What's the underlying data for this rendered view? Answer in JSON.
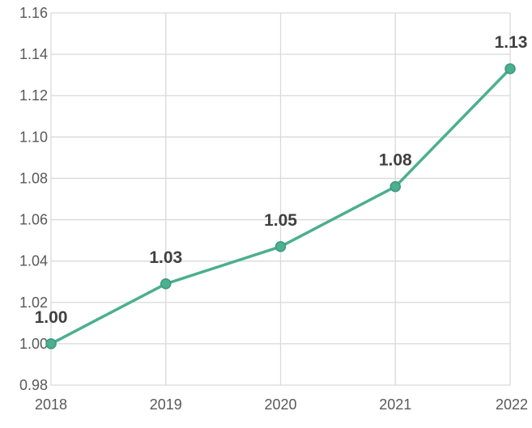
{
  "chart_data": {
    "type": "line",
    "title": "",
    "xlabel": "",
    "ylabel": "",
    "x": [
      "2018",
      "2019",
      "2020",
      "2021",
      "2022"
    ],
    "series": [
      {
        "values": [
          1.0,
          1.029,
          1.047,
          1.076,
          1.133
        ],
        "labels": [
          "1.00",
          "1.03",
          "1.05",
          "1.08",
          "1.13"
        ],
        "color": "#4caf8f"
      }
    ],
    "ylim": [
      0.98,
      1.16
    ],
    "yticks": [
      "0.98",
      "1.00",
      "1.02",
      "1.04",
      "1.06",
      "1.08",
      "1.10",
      "1.12",
      "1.14",
      "1.16"
    ],
    "grid": true,
    "legend": "none"
  }
}
